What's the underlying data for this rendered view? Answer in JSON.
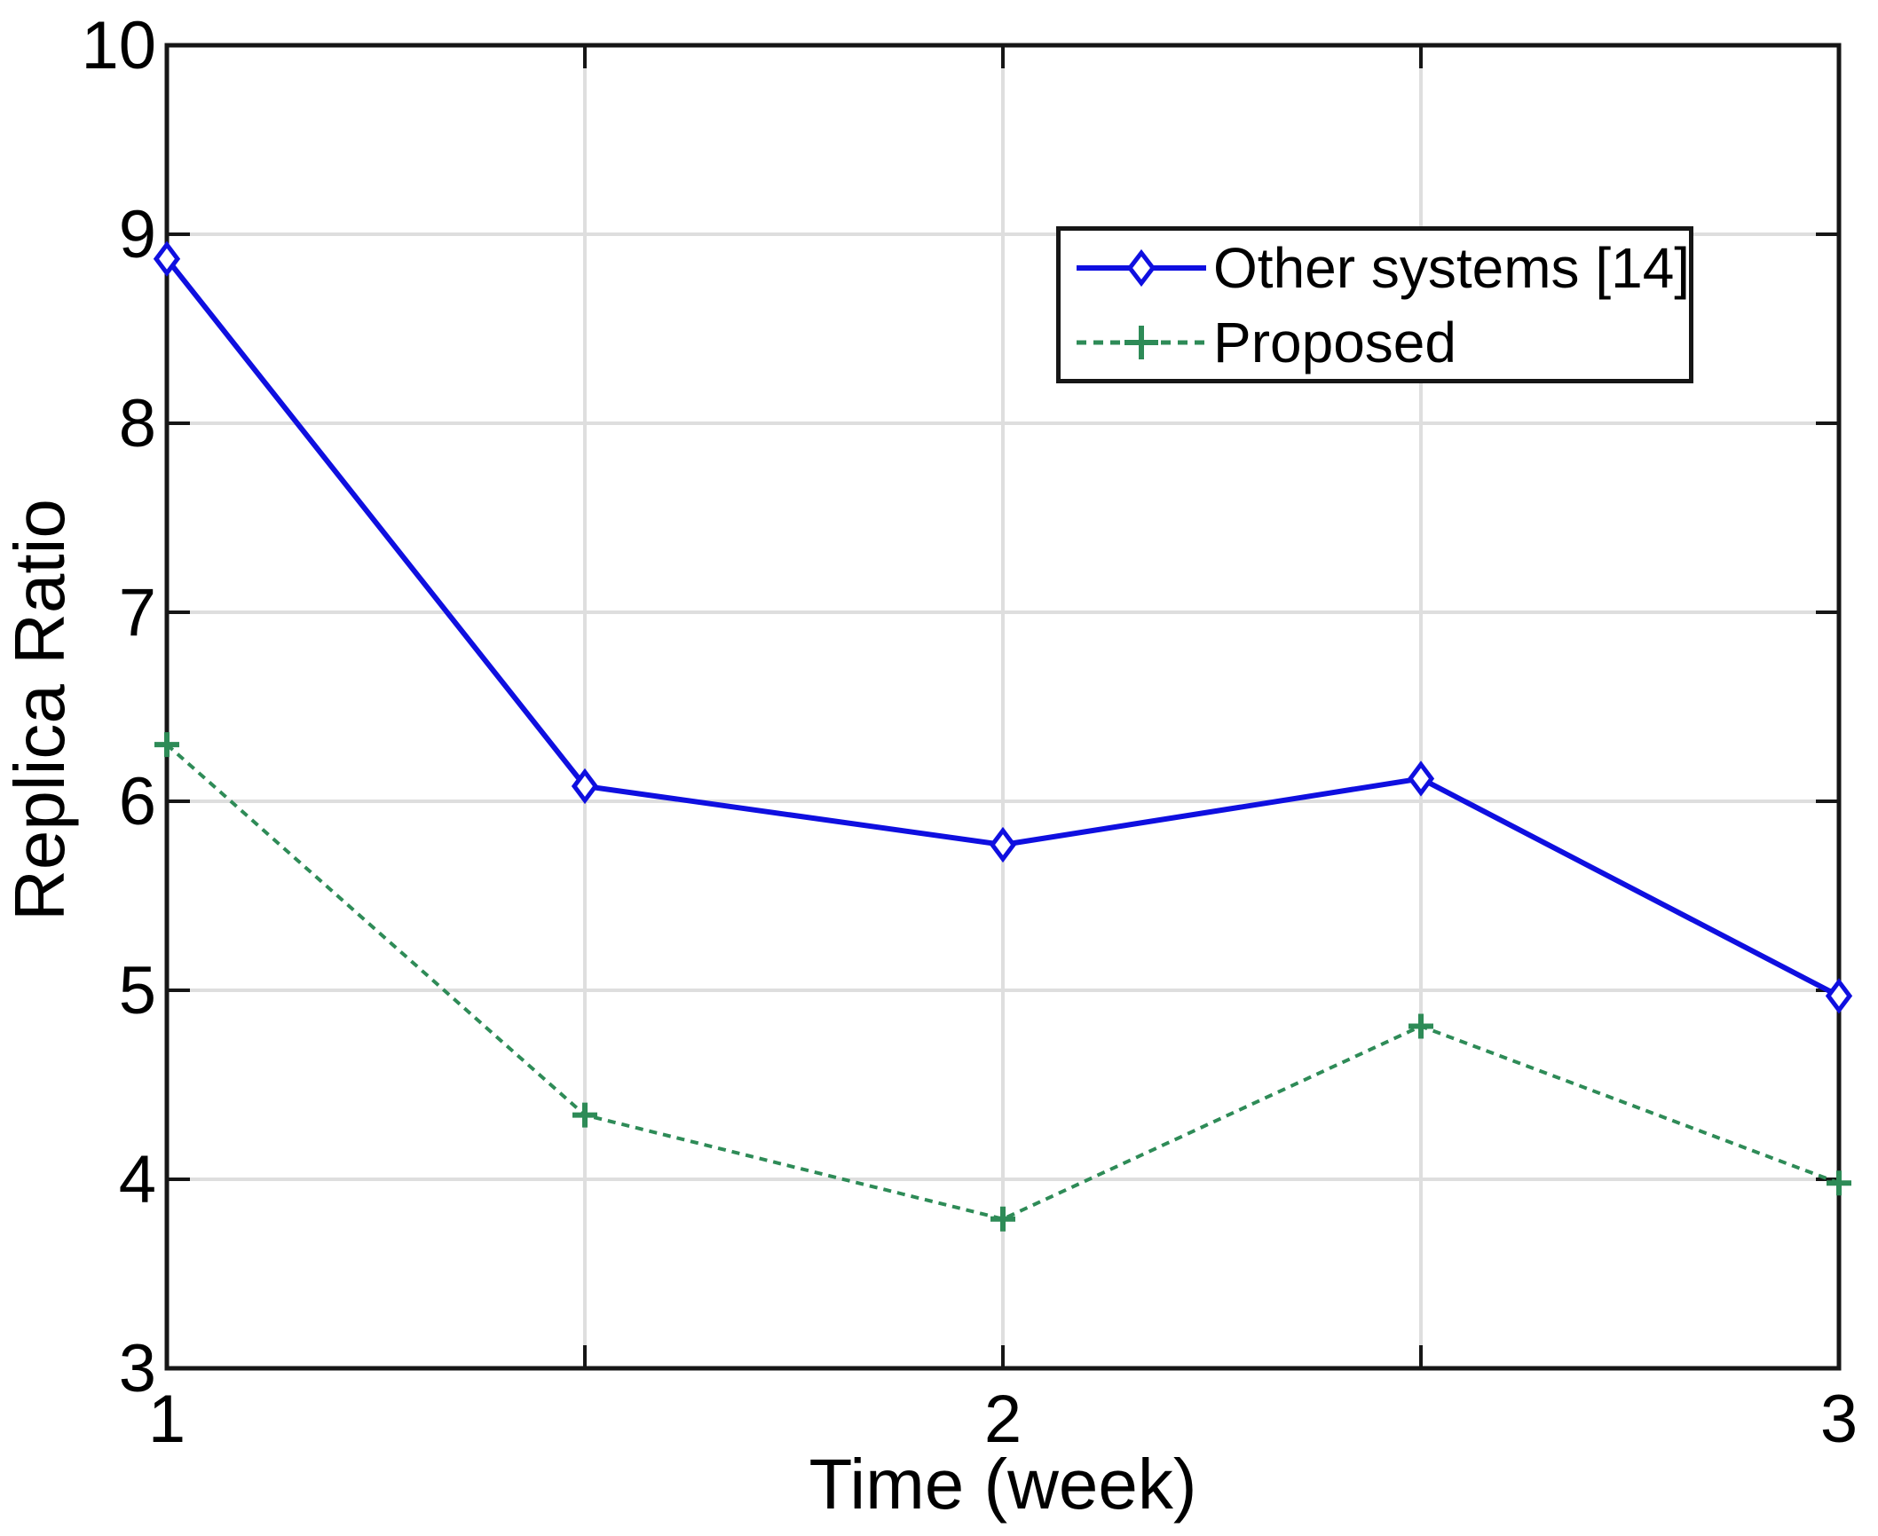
{
  "figure": {
    "background": "#ffffff"
  },
  "colors": {
    "axis": "#161616",
    "grid": "#dedede",
    "text": "#000000",
    "marker_fill": "#ffffff"
  },
  "chart_data": {
    "type": "line",
    "title": "",
    "xlabel": "Time (week)",
    "ylabel": "Replica Ratio",
    "xlim": [
      1,
      3
    ],
    "ylim": [
      3,
      10
    ],
    "grid": "on",
    "legend_position": "top-right",
    "x": [
      1,
      1.5,
      2,
      2.5,
      3
    ],
    "x_ticks": [
      {
        "value": 1,
        "label": "1"
      },
      {
        "value": 1.5,
        "label": ""
      },
      {
        "value": 2,
        "label": "2"
      },
      {
        "value": 2.5,
        "label": ""
      },
      {
        "value": 3,
        "label": "3"
      }
    ],
    "y_ticks": [
      {
        "value": 3,
        "label": "3"
      },
      {
        "value": 4,
        "label": "4"
      },
      {
        "value": 5,
        "label": "5"
      },
      {
        "value": 6,
        "label": "6"
      },
      {
        "value": 7,
        "label": "7"
      },
      {
        "value": 8,
        "label": "8"
      },
      {
        "value": 9,
        "label": "9"
      },
      {
        "value": 10,
        "label": "10"
      }
    ],
    "series": [
      {
        "name": "Other systems [14]",
        "color": "#0f0fe0",
        "marker": "diamond",
        "line_style": "solid",
        "values": [
          8.87,
          6.08,
          5.77,
          6.12,
          4.97
        ]
      },
      {
        "name": "Proposed",
        "color": "#2e8b57",
        "marker": "plus",
        "line_style": "dashed",
        "values": [
          6.3,
          4.34,
          3.79,
          4.81,
          3.98
        ]
      }
    ]
  }
}
